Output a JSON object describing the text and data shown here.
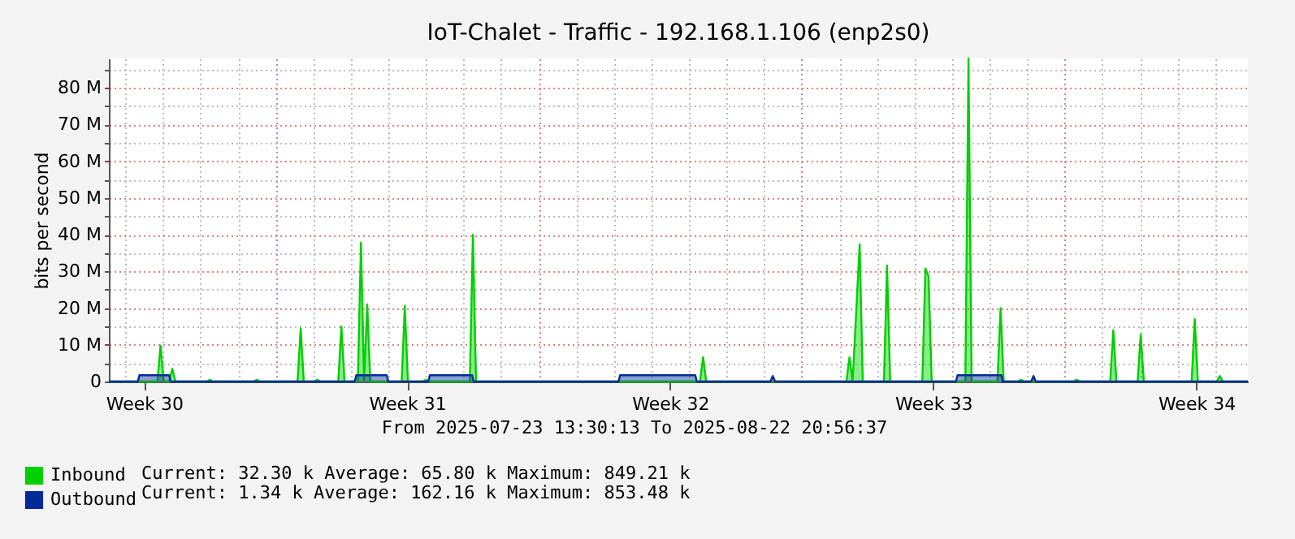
{
  "chart_data": {
    "type": "area",
    "title": "IoT-Chalet - Traffic - 192.168.1.106 (enp2s0)",
    "ylabel": "bits per second",
    "xlim": [
      "2025-07-23T13:30",
      "2025-08-22T20:56"
    ],
    "xticks": [
      {
        "value": "2025-07-24T12:00",
        "label": "Week 30"
      },
      {
        "value": "2025-07-31T12:00",
        "label": "Week 31"
      },
      {
        "value": "2025-08-07T12:00",
        "label": "Week 32"
      },
      {
        "value": "2025-08-14T12:00",
        "label": "Week 33"
      },
      {
        "value": "2025-08-21T12:00",
        "label": "Week 34"
      }
    ],
    "ylim": [
      0,
      88000000
    ],
    "yticks": [
      0,
      {
        "value": 5000000,
        "label": null
      },
      {
        "value": 10000000,
        "label": "10 M"
      },
      {
        "value": 15000000,
        "label": null
      },
      {
        "value": 20000000,
        "label": "20 M"
      },
      {
        "value": 25000000,
        "label": null
      },
      {
        "value": 30000000,
        "label": "30 M"
      },
      {
        "value": 35000000,
        "label": null
      },
      {
        "value": 40000000,
        "label": "40 M"
      },
      {
        "value": 45000000,
        "label": null
      },
      {
        "value": 50000000,
        "label": "50 M"
      },
      {
        "value": 55000000,
        "label": null
      },
      {
        "value": 60000000,
        "label": "60 M"
      },
      {
        "value": 65000000,
        "label": null
      },
      {
        "value": 70000000,
        "label": "70 M"
      },
      {
        "value": 75000000,
        "label": null
      },
      {
        "value": 80000000,
        "label": "80 M"
      },
      {
        "value": 85000000,
        "label": null
      }
    ],
    "grid": true,
    "legend": "bottom left",
    "series": [
      {
        "name": "Inbound",
        "color": "#00cf00",
        "x": [
          "2025-07-23T13:30",
          "2025-07-24T20:30",
          "2025-07-24T22:30",
          "2025-07-25T00:30",
          "2025-07-25T04:00",
          "2025-07-25T06:00",
          "2025-07-25T08:00",
          "2025-07-26T04:00",
          "2025-07-26T06:00",
          "2025-07-26T08:00",
          "2025-07-27T10:00",
          "2025-07-27T12:00",
          "2025-07-27T14:00",
          "2025-07-28T14:00",
          "2025-07-28T16:00",
          "2025-07-28T18:00",
          "2025-07-29T00:30",
          "2025-07-29T02:30",
          "2025-07-29T04:30",
          "2025-07-29T16:00",
          "2025-07-29T18:00",
          "2025-07-29T20:00",
          "2025-07-30T04:30",
          "2025-07-30T06:30",
          "2025-07-30T08:30",
          "2025-07-30T10:30",
          "2025-07-30T12:30",
          "2025-07-31T08:30",
          "2025-07-31T10:30",
          "2025-07-31T12:30",
          "2025-07-31T22:00",
          "2025-08-01T00:00",
          "2025-08-01T02:00",
          "2025-08-02T04:00",
          "2025-08-02T06:00",
          "2025-08-02T08:00",
          "2025-08-08T07:00",
          "2025-08-08T09:00",
          "2025-08-08T11:00",
          "2025-08-12T04:30",
          "2025-08-12T06:30",
          "2025-08-12T08:30",
          "2025-08-12T13:00",
          "2025-08-12T15:00",
          "2025-08-13T04:30",
          "2025-08-13T06:30",
          "2025-08-13T08:30",
          "2025-08-14T05:00",
          "2025-08-14T07:00",
          "2025-08-14T09:00",
          "2025-08-14T11:00",
          "2025-08-15T08:30",
          "2025-08-15T10:30",
          "2025-08-15T12:30",
          "2025-08-16T05:00",
          "2025-08-16T07:00",
          "2025-08-16T09:00",
          "2025-08-16T18:00",
          "2025-08-16T20:00",
          "2025-08-16T22:00",
          "2025-08-18T05:30",
          "2025-08-18T07:30",
          "2025-08-18T09:30",
          "2025-08-19T05:00",
          "2025-08-19T07:00",
          "2025-08-19T09:00",
          "2025-08-19T22:30",
          "2025-08-20T00:30",
          "2025-08-20T02:30",
          "2025-08-21T09:00",
          "2025-08-21T11:00",
          "2025-08-21T13:00",
          "2025-08-22T01:00",
          "2025-08-22T03:00",
          "2025-08-22T05:00",
          "2025-08-22T20:56"
        ],
        "values": [
          0,
          0,
          9800000,
          0,
          0,
          3500000,
          0,
          0,
          500000,
          0,
          0,
          500000,
          0,
          0,
          14500000,
          0,
          0,
          500000,
          0,
          0,
          15000000,
          0,
          0,
          37800000,
          0,
          21000000,
          0,
          0,
          20600000,
          0,
          0,
          500000,
          0,
          0,
          40000000,
          0,
          0,
          6600000,
          0,
          0,
          6600000,
          0,
          37400000,
          0,
          0,
          31600000,
          0,
          0,
          30800000,
          28600000,
          0,
          0,
          88000000,
          0,
          0,
          20000000,
          0,
          0,
          500000,
          0,
          0,
          500000,
          0,
          0,
          14000000,
          0,
          0,
          12800000,
          0,
          0,
          17000000,
          0,
          0,
          1500000,
          0,
          0
        ]
      },
      {
        "name": "Outbound",
        "color": "#002a97",
        "x": [
          "2025-07-23T13:30",
          "2025-07-24T08:00",
          "2025-07-24T09:00",
          "2025-07-25T04:00",
          "2025-07-25T05:00",
          "2025-07-30T02:30",
          "2025-07-30T03:30",
          "2025-07-30T23:00",
          "2025-07-31T00:00",
          "2025-08-01T01:30",
          "2025-08-01T02:30",
          "2025-08-02T05:30",
          "2025-08-02T06:30",
          "2025-08-06T03:00",
          "2025-08-06T04:00",
          "2025-08-08T04:00",
          "2025-08-08T05:00",
          "2025-08-10T04:00",
          "2025-08-10T05:30",
          "2025-08-10T07:00",
          "2025-08-15T02:30",
          "2025-08-15T03:30",
          "2025-08-16T07:30",
          "2025-08-16T08:30",
          "2025-08-17T02:30",
          "2025-08-17T04:00",
          "2025-08-17T05:30",
          "2025-08-22T20:56"
        ],
        "values": [
          0,
          0,
          1700000,
          1700000,
          0,
          0,
          1700000,
          1700000,
          0,
          0,
          1700000,
          1700000,
          0,
          0,
          1700000,
          1700000,
          0,
          0,
          1500000,
          0,
          0,
          1700000,
          1700000,
          0,
          0,
          1500000,
          0,
          0
        ]
      }
    ],
    "annotations": [
      "From 2025-07-23 13:30:13 To 2025-08-22 20:56:37",
      "Current:   32.30 k  Average:   65.80 k  Maximum:  849.21 k",
      "Current:    1.34 k  Average:  162.16 k  Maximum:  853.48 k"
    ]
  }
}
